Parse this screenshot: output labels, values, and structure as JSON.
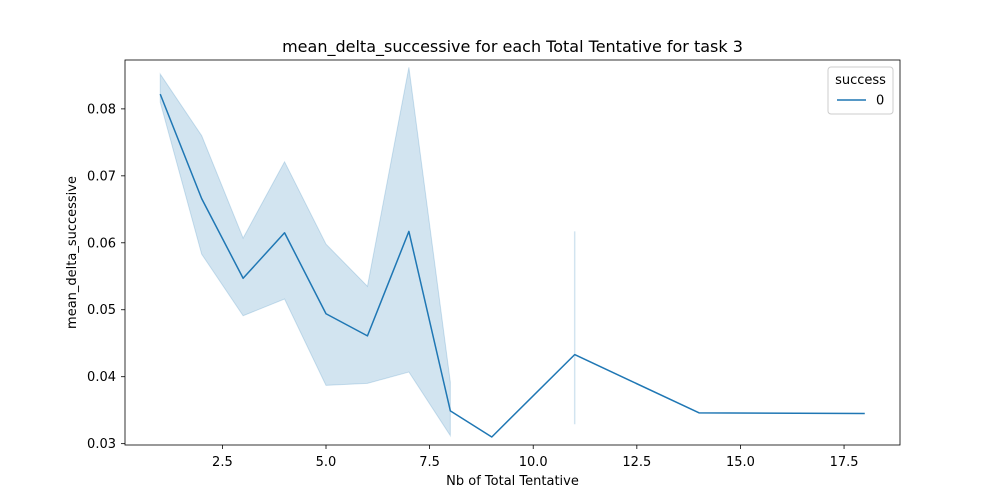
{
  "chart_data": {
    "type": "line",
    "title": "mean_delta_successive for each Total Tentative for task 3",
    "xlabel": "Nb of Total Tentative",
    "ylabel": "mean_delta_successive",
    "xlim": [
      0.15,
      18.85
    ],
    "ylim": [
      0.0298,
      0.0873
    ],
    "x_ticks": [
      2.5,
      5.0,
      7.5,
      10.0,
      12.5,
      15.0,
      17.5
    ],
    "x_tick_labels": [
      "2.5",
      "5.0",
      "7.5",
      "10.0",
      "12.5",
      "15.0",
      "17.5"
    ],
    "y_ticks": [
      0.03,
      0.04,
      0.05,
      0.06,
      0.07,
      0.08
    ],
    "y_tick_labels": [
      "0.03",
      "0.04",
      "0.05",
      "0.06",
      "0.07",
      "0.08"
    ],
    "grid": false,
    "legend": {
      "title": "success",
      "placement": "top-right",
      "entries": [
        "0"
      ]
    },
    "series": [
      {
        "name": "0",
        "color": "#1f77b4",
        "x": [
          1,
          2,
          3,
          4,
          5,
          6,
          7,
          8,
          9,
          11,
          14,
          18
        ],
        "y": [
          0.0822,
          0.0666,
          0.0547,
          0.0615,
          0.0494,
          0.0461,
          0.0617,
          0.0349,
          0.031,
          0.0433,
          0.0346,
          0.0345
        ],
        "ci_lower": [
          0.081,
          0.0583,
          0.0491,
          0.0516,
          0.0387,
          0.039,
          0.0407,
          0.0312,
          null,
          0.0329,
          null,
          null
        ],
        "ci_upper": [
          0.0852,
          0.076,
          0.0607,
          0.0721,
          0.0598,
          0.0535,
          0.0862,
          0.0392,
          null,
          0.0617,
          null,
          null
        ]
      }
    ]
  }
}
